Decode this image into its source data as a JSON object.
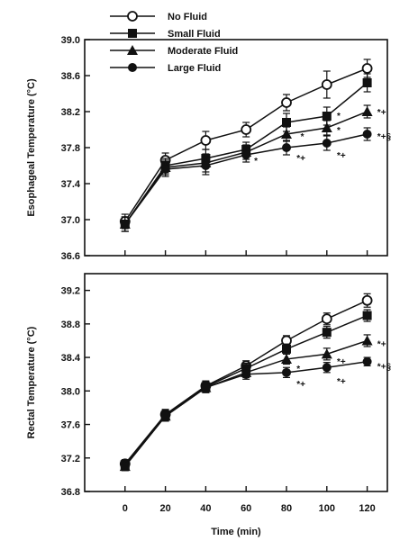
{
  "chart_data": [
    {
      "type": "line",
      "x": [
        0,
        20,
        40,
        60,
        80,
        100,
        120
      ],
      "xlim": [
        -20,
        130
      ],
      "ylim": [
        36.6,
        39.0
      ],
      "yticks": [
        "36.6",
        "37.0",
        "37.4",
        "37.8",
        "38.2",
        "38.6",
        "39.0"
      ],
      "ylabel": "Esophageal Temperature (°C)",
      "xlabel": "",
      "grid": false,
      "series": [
        {
          "name": "No Fluid",
          "marker": "open-circle",
          "values": [
            36.98,
            37.66,
            37.88,
            38.0,
            38.3,
            38.5,
            38.68
          ],
          "errors": [
            0.08,
            0.08,
            0.1,
            0.08,
            0.09,
            0.15,
            0.1
          ]
        },
        {
          "name": "Small Fluid",
          "marker": "square",
          "values": [
            36.95,
            37.6,
            37.68,
            37.78,
            38.08,
            38.15,
            38.52
          ],
          "errors": [
            0.08,
            0.08,
            0.1,
            0.08,
            0.1,
            0.1,
            0.1
          ]
        },
        {
          "name": "Moderate Fluid",
          "marker": "triangle",
          "values": [
            36.95,
            37.58,
            37.63,
            37.75,
            37.95,
            38.02,
            38.2
          ],
          "errors": [
            0.08,
            0.08,
            0.1,
            0.08,
            0.08,
            0.08,
            0.07
          ]
        },
        {
          "name": "Large Fluid",
          "marker": "filled-circle",
          "values": [
            36.95,
            37.56,
            37.6,
            37.72,
            37.8,
            37.85,
            37.95
          ],
          "errors": [
            0.08,
            0.08,
            0.1,
            0.08,
            0.08,
            0.08,
            0.07
          ]
        }
      ],
      "annotations": [
        {
          "text": "*",
          "x": 64,
          "y": 37.66
        },
        {
          "text": "*",
          "x": 87,
          "y": 37.93
        },
        {
          "text": "*+",
          "x": 85,
          "y": 37.69
        },
        {
          "text": "*",
          "x": 105,
          "y": 38.16
        },
        {
          "text": "*",
          "x": 105,
          "y": 38.0
        },
        {
          "text": "*+",
          "x": 105,
          "y": 37.72
        },
        {
          "text": "*+",
          "x": 125,
          "y": 38.2
        },
        {
          "text": "*+§",
          "x": 125,
          "y": 37.93
        }
      ]
    },
    {
      "type": "line",
      "x": [
        0,
        20,
        40,
        60,
        80,
        100,
        120
      ],
      "xlim": [
        -20,
        130
      ],
      "ylim": [
        36.8,
        39.4
      ],
      "yticks": [
        "36.8",
        "37.2",
        "37.6",
        "38.0",
        "38.4",
        "38.8",
        "39.2"
      ],
      "xticks": [
        "0",
        "20",
        "40",
        "60",
        "80",
        "100",
        "120"
      ],
      "ylabel": "Rectal Temperature (°C)",
      "xlabel": "Time (min)",
      "grid": false,
      "series": [
        {
          "name": "No Fluid",
          "marker": "open-circle",
          "values": [
            37.13,
            37.72,
            38.06,
            38.3,
            38.6,
            38.86,
            39.08
          ],
          "errors": [
            0.05,
            0.06,
            0.06,
            0.06,
            0.06,
            0.07,
            0.08
          ]
        },
        {
          "name": "Small Fluid",
          "marker": "square",
          "values": [
            37.12,
            37.71,
            38.05,
            38.27,
            38.5,
            38.7,
            38.9
          ],
          "errors": [
            0.05,
            0.06,
            0.06,
            0.06,
            0.06,
            0.07,
            0.07
          ]
        },
        {
          "name": "Moderate Fluid",
          "marker": "triangle",
          "values": [
            37.1,
            37.7,
            38.04,
            38.22,
            38.38,
            38.44,
            38.6
          ],
          "errors": [
            0.05,
            0.06,
            0.06,
            0.06,
            0.06,
            0.07,
            0.07
          ]
        },
        {
          "name": "Large Fluid",
          "marker": "filled-circle",
          "values": [
            37.1,
            37.7,
            38.04,
            38.2,
            38.22,
            38.28,
            38.35
          ],
          "errors": [
            0.05,
            0.06,
            0.06,
            0.06,
            0.06,
            0.06,
            0.05
          ]
        }
      ],
      "annotations": [
        {
          "text": "*",
          "x": 85,
          "y": 38.27
        },
        {
          "text": "*+",
          "x": 85,
          "y": 38.09
        },
        {
          "text": "*+",
          "x": 105,
          "y": 38.36
        },
        {
          "text": "*+",
          "x": 105,
          "y": 38.12
        },
        {
          "text": "*+",
          "x": 125,
          "y": 38.57
        },
        {
          "text": "*+§",
          "x": 125,
          "y": 38.3
        }
      ]
    }
  ]
}
